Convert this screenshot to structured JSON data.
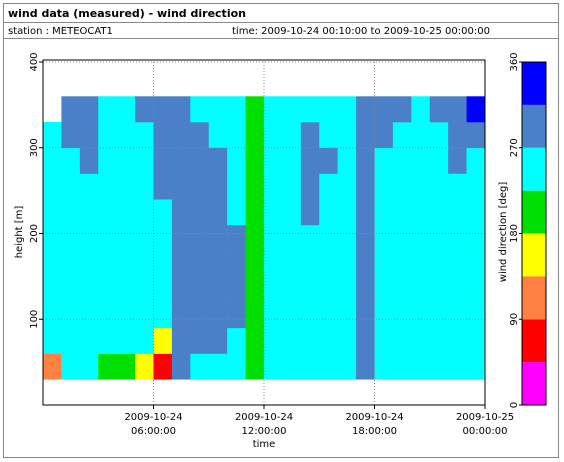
{
  "header": {
    "title": "wind data (measured) - wind direction",
    "station": "station : METEOCAT1",
    "time": "time: 2009-10-24 00:10:00 to 2009-10-25 00:00:00"
  },
  "chart_data": {
    "type": "heatmap",
    "xlabel": "time",
    "ylabel": "height [m]",
    "xlim": [
      "2009-10-24 00:00:00",
      "2009-10-25 00:00:00"
    ],
    "xticks": [
      {
        "value": "2009-10-24 06:00:00",
        "label": [
          "2009-10-24",
          "06:00:00"
        ]
      },
      {
        "value": "2009-10-24 12:00:00",
        "label": [
          "2009-10-24",
          "12:00:00"
        ]
      },
      {
        "value": "2009-10-24 18:00:00",
        "label": [
          "2009-10-24",
          "18:00:00"
        ]
      },
      {
        "value": "2009-10-25 00:00:00",
        "label": [
          "2009-10-25",
          "00:00:00"
        ]
      }
    ],
    "ylim": [
      0,
      400
    ],
    "yticks": [
      100,
      200,
      300,
      400
    ],
    "grid": true,
    "x": [
      "2009-10-24 00:00:00",
      "2009-10-24 01:00:00",
      "2009-10-24 02:00:00",
      "2009-10-24 03:00:00",
      "2009-10-24 04:00:00",
      "2009-10-24 05:00:00",
      "2009-10-24 06:00:00",
      "2009-10-24 07:00:00",
      "2009-10-24 08:00:00",
      "2009-10-24 09:00:00",
      "2009-10-24 10:00:00",
      "2009-10-24 11:00:00",
      "2009-10-24 12:00:00",
      "2009-10-24 13:00:00",
      "2009-10-24 14:00:00",
      "2009-10-24 15:00:00",
      "2009-10-24 16:00:00",
      "2009-10-24 17:00:00",
      "2009-10-24 18:00:00",
      "2009-10-24 19:00:00",
      "2009-10-24 20:00:00",
      "2009-10-24 21:00:00",
      "2009-10-24 22:00:00",
      "2009-10-24 23:00:00",
      "2009-10-25 00:00:00"
    ],
    "y": [
      30,
      60,
      90,
      120,
      150,
      180,
      210,
      240,
      270,
      300,
      330,
      360
    ],
    "values": [
      [
        110,
        250,
        250,
        250,
        250,
        250,
        250,
        250,
        250,
        250,
        null
      ],
      [
        250,
        250,
        250,
        250,
        250,
        250,
        250,
        250,
        250,
        290,
        290
      ],
      [
        250,
        250,
        250,
        250,
        250,
        250,
        250,
        250,
        290,
        290,
        290
      ],
      [
        200,
        250,
        250,
        250,
        250,
        250,
        250,
        250,
        250,
        250,
        250
      ],
      [
        200,
        250,
        250,
        250,
        250,
        250,
        250,
        250,
        250,
        250,
        250
      ],
      [
        160,
        250,
        250,
        250,
        250,
        250,
        250,
        250,
        250,
        250,
        290
      ],
      [
        70,
        160,
        250,
        250,
        250,
        250,
        250,
        290,
        290,
        290,
        290
      ],
      [
        290,
        290,
        290,
        290,
        290,
        290,
        290,
        290,
        290,
        290,
        290
      ],
      [
        250,
        290,
        290,
        290,
        290,
        290,
        290,
        290,
        290,
        290,
        250
      ],
      [
        250,
        290,
        290,
        290,
        290,
        290,
        290,
        290,
        290,
        250,
        250
      ],
      [
        250,
        250,
        290,
        290,
        290,
        290,
        250,
        250,
        250,
        250,
        250
      ],
      [
        200,
        200,
        200,
        200,
        200,
        200,
        200,
        200,
        200,
        200,
        200
      ],
      [
        250,
        250,
        250,
        250,
        250,
        250,
        250,
        250,
        250,
        250,
        250
      ],
      [
        250,
        250,
        250,
        250,
        250,
        250,
        250,
        250,
        250,
        250,
        250
      ],
      [
        250,
        250,
        250,
        250,
        250,
        250,
        290,
        290,
        290,
        290,
        250
      ],
      [
        250,
        250,
        250,
        250,
        250,
        250,
        250,
        250,
        290,
        250,
        250
      ],
      [
        250,
        250,
        250,
        250,
        250,
        250,
        250,
        250,
        250,
        250,
        250
      ],
      [
        290,
        290,
        290,
        290,
        290,
        290,
        290,
        290,
        290,
        290,
        290
      ],
      [
        250,
        250,
        250,
        250,
        250,
        250,
        250,
        250,
        250,
        290,
        290
      ],
      [
        250,
        250,
        250,
        250,
        250,
        250,
        250,
        250,
        250,
        250,
        290
      ],
      [
        250,
        250,
        250,
        250,
        250,
        250,
        250,
        250,
        250,
        250,
        250
      ],
      [
        250,
        250,
        250,
        250,
        250,
        250,
        250,
        250,
        250,
        250,
        290
      ],
      [
        250,
        250,
        250,
        250,
        250,
        250,
        250,
        250,
        290,
        290,
        290
      ],
      [
        250,
        250,
        250,
        250,
        250,
        250,
        250,
        250,
        250,
        290,
        340
      ]
    ],
    "colorbar": {
      "label": "wind direction [deg]",
      "bounds": [
        0,
        45,
        90,
        135,
        180,
        225,
        270,
        315,
        360
      ],
      "colors": [
        "#ff00ff",
        "#ff0000",
        "#ff8040",
        "#ffff00",
        "#00e000",
        "#00ffff",
        "#4a80c8",
        "#0000ff"
      ],
      "ticks": [
        0,
        90,
        180,
        270,
        360
      ]
    }
  }
}
